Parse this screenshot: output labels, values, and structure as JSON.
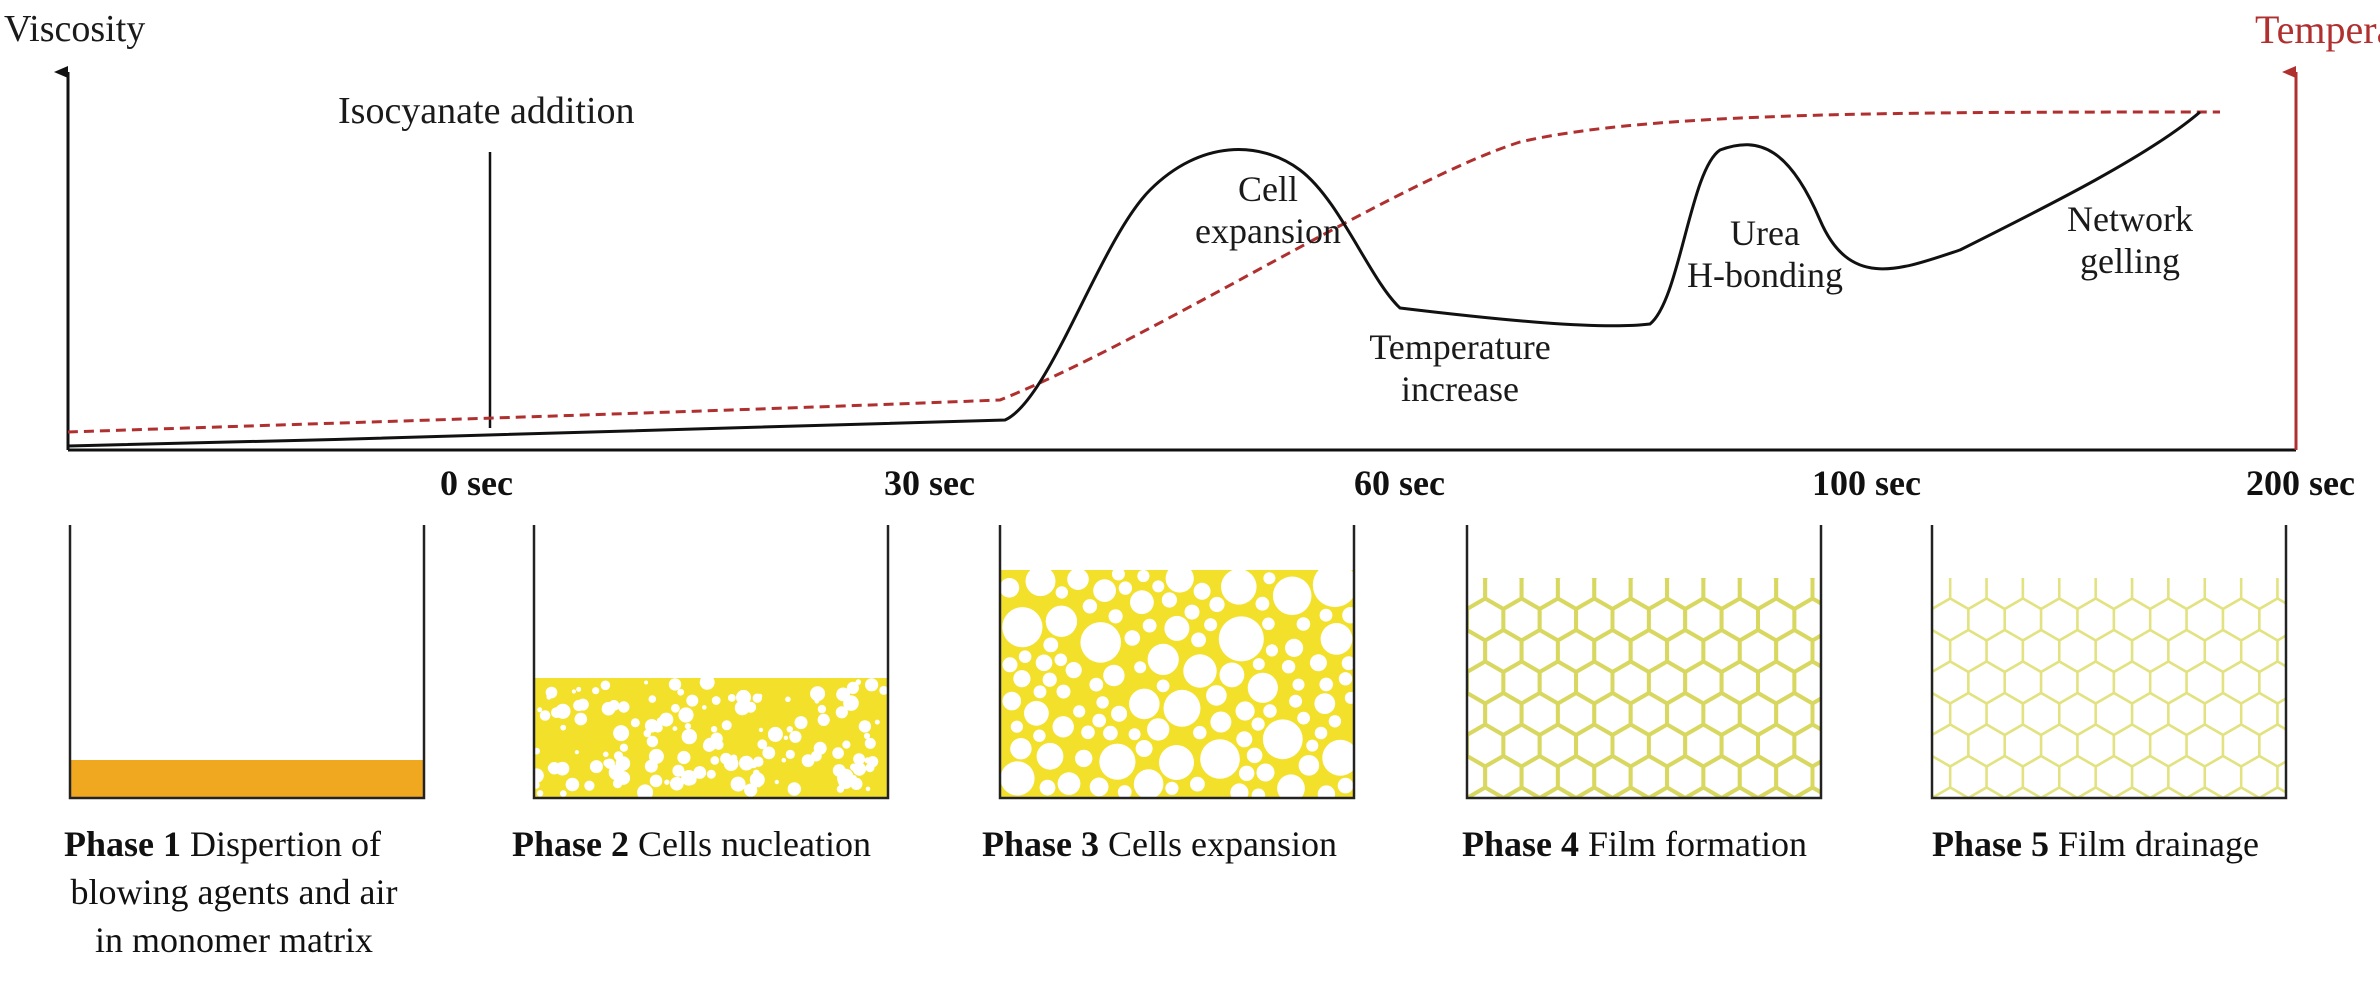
{
  "axes": {
    "left_title": "Viscosity",
    "right_title": "Temperatu",
    "ticks": [
      "0 sec",
      "30 sec",
      "60 sec",
      "100 sec",
      "200 sec"
    ]
  },
  "annotations": {
    "isocyanate": "Isocyanate addition",
    "cell_expansion": [
      "Cell",
      "expansion"
    ],
    "temperature_increase": [
      "Temperature",
      "increase"
    ],
    "urea": [
      "Urea",
      "H-bonding"
    ],
    "network": [
      "Network",
      "gelling"
    ]
  },
  "phases": [
    {
      "tag": "Phase 1",
      "text": "Dispertion of",
      "lines": [
        "blowing agents and air",
        "in monomer matrix"
      ]
    },
    {
      "tag": "Phase 2",
      "text": "Cells nucleation",
      "lines": []
    },
    {
      "tag": "Phase 3",
      "text": "Cells expansion",
      "lines": []
    },
    {
      "tag": "Phase 4",
      "text": "Film formation",
      "lines": []
    },
    {
      "tag": "Phase 5",
      "text": "Film drainage",
      "lines": []
    }
  ],
  "colors": {
    "viscosity": "#111111",
    "temperature": "#b03030",
    "phase1_fill": "#f0a820",
    "foam_fill": "#f2e02a",
    "hex_line": "#d8d860"
  }
}
